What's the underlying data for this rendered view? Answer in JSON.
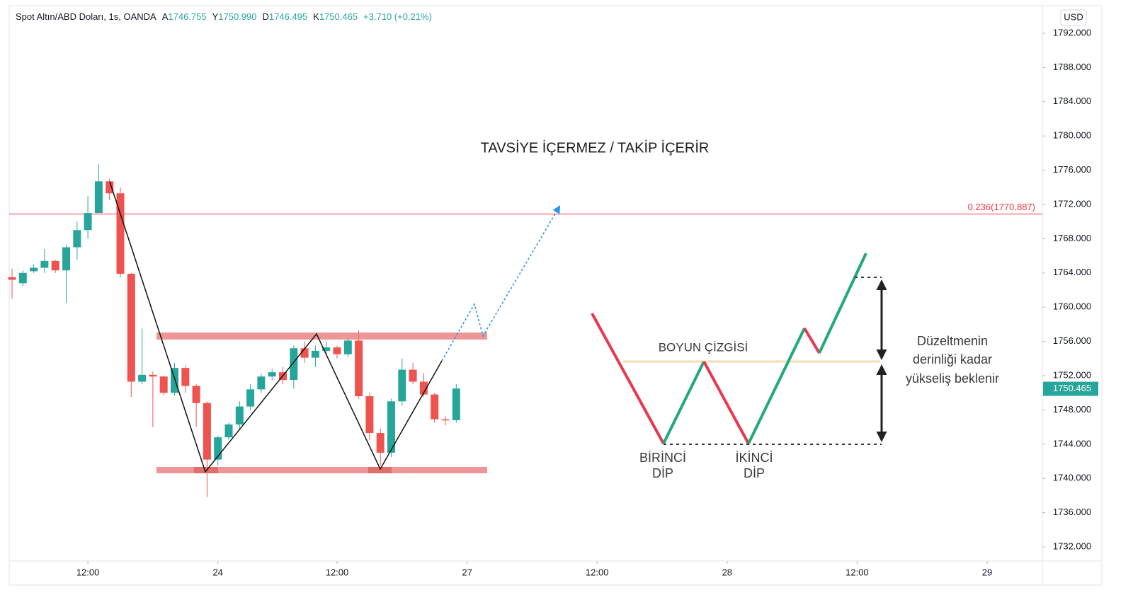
{
  "chart_data": {
    "type": "candlestick",
    "title": "Spot Altın/ABD Doları, 1s, OANDA",
    "legend_stats": [
      {
        "key": "A",
        "text": "1746.755"
      },
      {
        "key": "Y",
        "text": "1750.990"
      },
      {
        "key": "D",
        "text": "1746.495"
      },
      {
        "key": "K",
        "text": "1750.465"
      }
    ],
    "change": "+3.710 (+0.21%)",
    "currency": "USD",
    "up_color": "#26a69a",
    "down_color": "#ef5350",
    "open": [
      1763.5,
      1762.8,
      1764.2,
      1764.6,
      1765.4,
      1764.3,
      1767,
      1769,
      1771,
      1774.7,
      1773.3,
      1763.9,
      1751.3,
      1752.1,
      1751.9,
      1750,
      1752.9,
      1750.8,
      1748.8,
      1742.2,
      1744.8,
      1746.3,
      1748.4,
      1750.4,
      1751.9,
      1752.4,
      1751.5,
      1755.2,
      1754.1,
      1754.9,
      1755.3,
      1754.5,
      1756.1,
      1749.6,
      1745.3,
      1743,
      1749,
      1752.7,
      1751.3,
      1749.8,
      1746.9,
      1746.8
    ],
    "high": [
      1764.5,
      1764.3,
      1765,
      1766.8,
      1765.5,
      1767.3,
      1770,
      1773,
      1776.7,
      1775,
      1774,
      1764,
      1757.5,
      1752.5,
      1752,
      1753.5,
      1753.2,
      1751,
      1749,
      1745,
      1746.5,
      1749,
      1751,
      1752.2,
      1752.8,
      1753,
      1755.5,
      1756,
      1755.5,
      1756,
      1755.5,
      1756.5,
      1757.3,
      1750,
      1745.8,
      1749.3,
      1754,
      1753.5,
      1752.3,
      1750,
      1747.3,
      1751
    ],
    "low": [
      1761,
      1762.5,
      1764,
      1764,
      1764,
      1760.5,
      1765.5,
      1768,
      1771,
      1772.5,
      1763.5,
      1749.5,
      1751,
      1746,
      1749.7,
      1749.7,
      1750,
      1746,
      1737.8,
      1741.5,
      1744.5,
      1745.8,
      1748,
      1750,
      1751.5,
      1751,
      1750.5,
      1753.5,
      1753,
      1754.5,
      1754,
      1754.2,
      1749.3,
      1744.5,
      1741.5,
      1742.5,
      1748.5,
      1751,
      1749.5,
      1746.5,
      1746.2,
      1746.5
    ],
    "close": [
      1763.2,
      1764,
      1764.6,
      1765.4,
      1764.3,
      1767,
      1769,
      1771,
      1774.7,
      1773.3,
      1763.9,
      1751.3,
      1752.1,
      1751.9,
      1750,
      1752.9,
      1750.8,
      1748.8,
      1742.2,
      1744.8,
      1746.3,
      1748.4,
      1750.4,
      1751.9,
      1752.4,
      1751.5,
      1755.2,
      1754.1,
      1754.9,
      1755.3,
      1754.5,
      1756.1,
      1749.6,
      1745.3,
      1743,
      1749,
      1752.7,
      1751.3,
      1749.8,
      1746.9,
      1746.8,
      1750.5
    ],
    "xticks": [
      {
        "value": 7,
        "label": "12:00"
      },
      {
        "value": 19,
        "label": "24"
      },
      {
        "value": 30,
        "label": "12:00"
      },
      {
        "value": 42,
        "label": "27"
      },
      {
        "value": 54,
        "label": "12:00"
      },
      {
        "value": 66,
        "label": "28"
      },
      {
        "value": 78,
        "label": "12:00"
      },
      {
        "value": 90,
        "label": "29"
      }
    ],
    "ylim": [
      1730.35,
      1795.22
    ],
    "yticks": [
      {
        "value": 1732,
        "label": "1732.000"
      },
      {
        "value": 1736,
        "label": "1736.000"
      },
      {
        "value": 1740,
        "label": "1740.000"
      },
      {
        "value": 1744,
        "label": "1744.000"
      },
      {
        "value": 1748,
        "label": "1748.000"
      },
      {
        "value": 1752,
        "label": "1752.000"
      },
      {
        "value": 1756,
        "label": "1756.000"
      },
      {
        "value": 1760,
        "label": "1760.000"
      },
      {
        "value": 1764,
        "label": "1764.000"
      },
      {
        "value": 1768,
        "label": "1768.000"
      },
      {
        "value": 1772,
        "label": "1772.000"
      },
      {
        "value": 1776,
        "label": "1776.000"
      },
      {
        "value": 1780,
        "label": "1780.000"
      },
      {
        "value": 1784,
        "label": "1784.000"
      },
      {
        "value": 1788,
        "label": "1788.000"
      },
      {
        "value": 1792,
        "label": "1792.000"
      }
    ],
    "fib_level": {
      "value": 1770.887,
      "label": "0.236(1770.887)",
      "color": "#f23645"
    },
    "last_price": {
      "value": 1750.465,
      "label": "1750.465",
      "color": "#26a69a"
    },
    "annotations": {
      "disclaimer": "TAVSİYE İÇERMEZ / TAKİP İÇERİR",
      "neckline": "BOYUN ÇİZGİSİ",
      "first_bottom": [
        "BİRİNCİ",
        "DİP"
      ],
      "second_bottom": [
        "İKİNCİ",
        "DİP"
      ],
      "target_note": [
        "Düzeltmenin",
        "derinliği kadar",
        "yükseliş beklenir"
      ]
    }
  }
}
